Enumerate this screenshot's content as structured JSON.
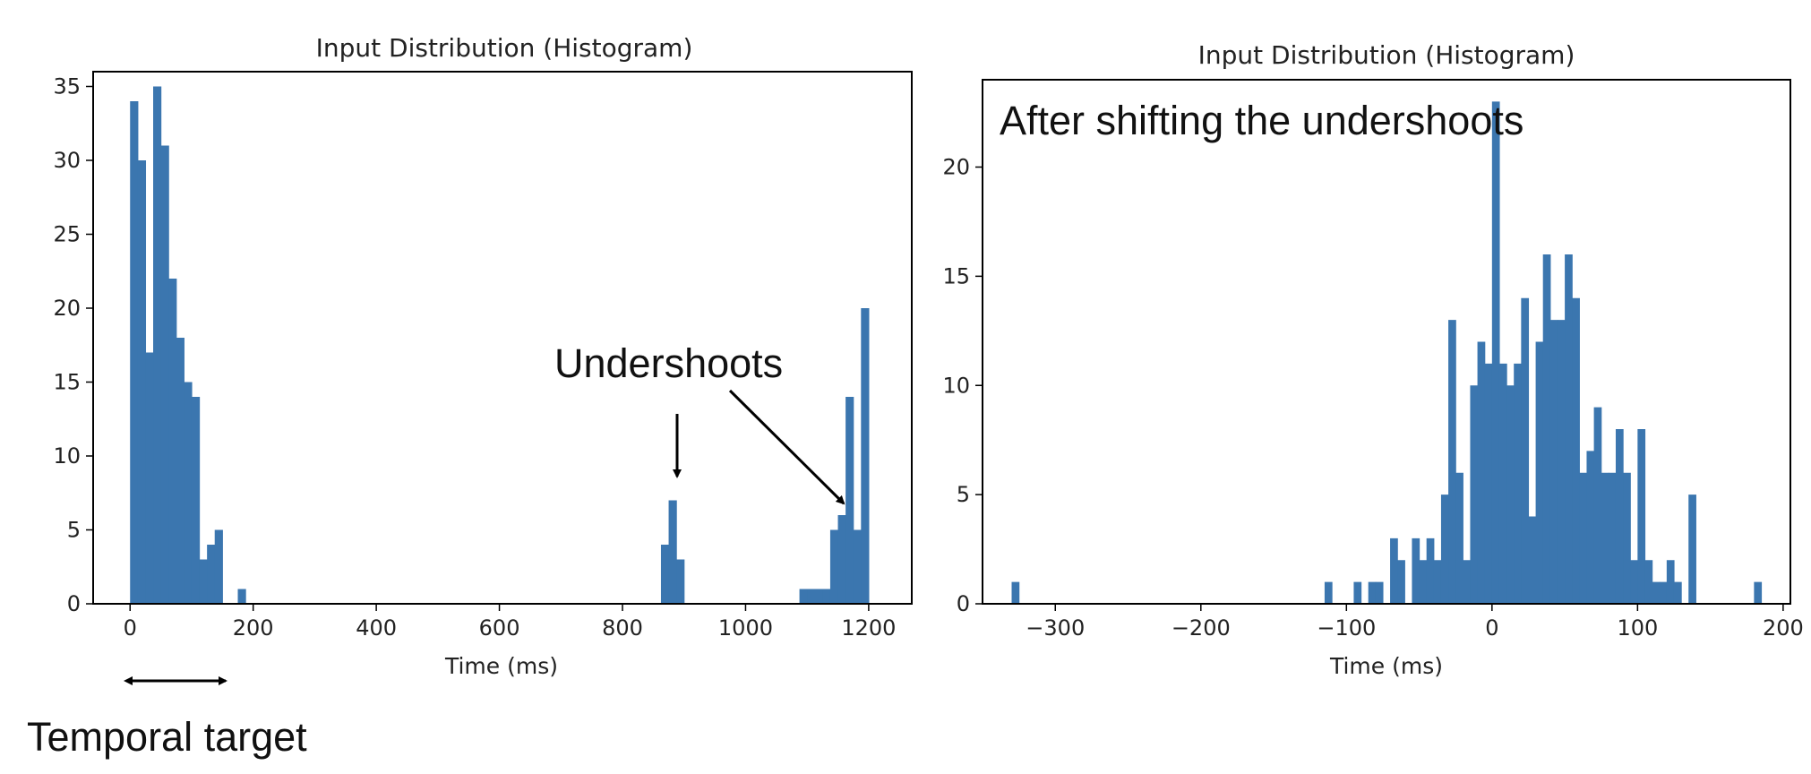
{
  "chart_data": [
    {
      "type": "bar",
      "title": "Input Distribution (Histogram)",
      "xlabel": "Time (ms)",
      "ylabel": "",
      "xlim": [
        -60,
        1270
      ],
      "ylim": [
        0,
        36
      ],
      "xticks": [
        0,
        200,
        400,
        600,
        800,
        1000,
        1200
      ],
      "xtick_labels": [
        "0",
        "200",
        "400",
        "600",
        "800",
        "1000",
        "1200"
      ],
      "yticks": [
        0,
        5,
        10,
        15,
        20,
        25,
        30,
        35
      ],
      "ytick_labels": [
        "0",
        "5",
        "10",
        "15",
        "20",
        "25",
        "30",
        "35"
      ],
      "bin_width": 12.5,
      "bins": [
        {
          "x": 0,
          "count": 34
        },
        {
          "x": 12.5,
          "count": 30
        },
        {
          "x": 25,
          "count": 17
        },
        {
          "x": 37.5,
          "count": 35
        },
        {
          "x": 50,
          "count": 31
        },
        {
          "x": 62.5,
          "count": 22
        },
        {
          "x": 75,
          "count": 18
        },
        {
          "x": 87.5,
          "count": 15
        },
        {
          "x": 100,
          "count": 14
        },
        {
          "x": 112.5,
          "count": 3
        },
        {
          "x": 125,
          "count": 4
        },
        {
          "x": 137.5,
          "count": 5
        },
        {
          "x": 175,
          "count": 1
        },
        {
          "x": 862.5,
          "count": 4
        },
        {
          "x": 875,
          "count": 7
        },
        {
          "x": 887.5,
          "count": 3
        },
        {
          "x": 1087.5,
          "count": 1
        },
        {
          "x": 1100,
          "count": 1
        },
        {
          "x": 1112.5,
          "count": 1
        },
        {
          "x": 1125,
          "count": 1
        },
        {
          "x": 1137.5,
          "count": 5
        },
        {
          "x": 1150,
          "count": 6
        },
        {
          "x": 1162.5,
          "count": 14
        },
        {
          "x": 1175,
          "count": 5
        },
        {
          "x": 1187.5,
          "count": 20
        }
      ],
      "color": "#3b76af",
      "annotations": [
        "Undershoots",
        "Temporal target"
      ]
    },
    {
      "type": "bar",
      "title": "Input Distribution (Histogram)",
      "xlabel": "Time (ms)",
      "ylabel": "",
      "xlim": [
        -350,
        205
      ],
      "ylim": [
        0,
        24
      ],
      "xticks": [
        -300,
        -200,
        -100,
        0,
        100,
        200
      ],
      "xtick_labels": [
        "−300",
        "−200",
        "−100",
        "0",
        "100",
        "200"
      ],
      "yticks": [
        0,
        5,
        10,
        15,
        20
      ],
      "ytick_labels": [
        "0",
        "5",
        "10",
        "15",
        "20"
      ],
      "bin_width": 5,
      "bins": [
        {
          "x": -330,
          "count": 1
        },
        {
          "x": -115,
          "count": 1
        },
        {
          "x": -95,
          "count": 1
        },
        {
          "x": -85,
          "count": 1
        },
        {
          "x": -80,
          "count": 1
        },
        {
          "x": -70,
          "count": 3
        },
        {
          "x": -65,
          "count": 2
        },
        {
          "x": -55,
          "count": 3
        },
        {
          "x": -50,
          "count": 2
        },
        {
          "x": -45,
          "count": 3
        },
        {
          "x": -40,
          "count": 2
        },
        {
          "x": -35,
          "count": 5
        },
        {
          "x": -30,
          "count": 13
        },
        {
          "x": -25,
          "count": 6
        },
        {
          "x": -20,
          "count": 2
        },
        {
          "x": -15,
          "count": 10
        },
        {
          "x": -10,
          "count": 12
        },
        {
          "x": -5,
          "count": 11
        },
        {
          "x": 0,
          "count": 23
        },
        {
          "x": 5,
          "count": 11
        },
        {
          "x": 10,
          "count": 10
        },
        {
          "x": 15,
          "count": 11
        },
        {
          "x": 20,
          "count": 14
        },
        {
          "x": 25,
          "count": 4
        },
        {
          "x": 30,
          "count": 12
        },
        {
          "x": 35,
          "count": 16
        },
        {
          "x": 40,
          "count": 13
        },
        {
          "x": 45,
          "count": 13
        },
        {
          "x": 50,
          "count": 16
        },
        {
          "x": 55,
          "count": 14
        },
        {
          "x": 60,
          "count": 6
        },
        {
          "x": 65,
          "count": 7
        },
        {
          "x": 70,
          "count": 9
        },
        {
          "x": 75,
          "count": 6
        },
        {
          "x": 80,
          "count": 6
        },
        {
          "x": 85,
          "count": 8
        },
        {
          "x": 90,
          "count": 6
        },
        {
          "x": 95,
          "count": 2
        },
        {
          "x": 100,
          "count": 8
        },
        {
          "x": 105,
          "count": 2
        },
        {
          "x": 110,
          "count": 1
        },
        {
          "x": 115,
          "count": 1
        },
        {
          "x": 120,
          "count": 2
        },
        {
          "x": 125,
          "count": 1
        },
        {
          "x": 135,
          "count": 5
        },
        {
          "x": 180,
          "count": 1
        }
      ],
      "color": "#3b76af",
      "annotations": [
        "After shifting the undershoots"
      ]
    }
  ],
  "annotations": {
    "undershoots": "Undershoots",
    "temporal_target": "Temporal target",
    "after_shift": "After shifting the undershoots"
  }
}
